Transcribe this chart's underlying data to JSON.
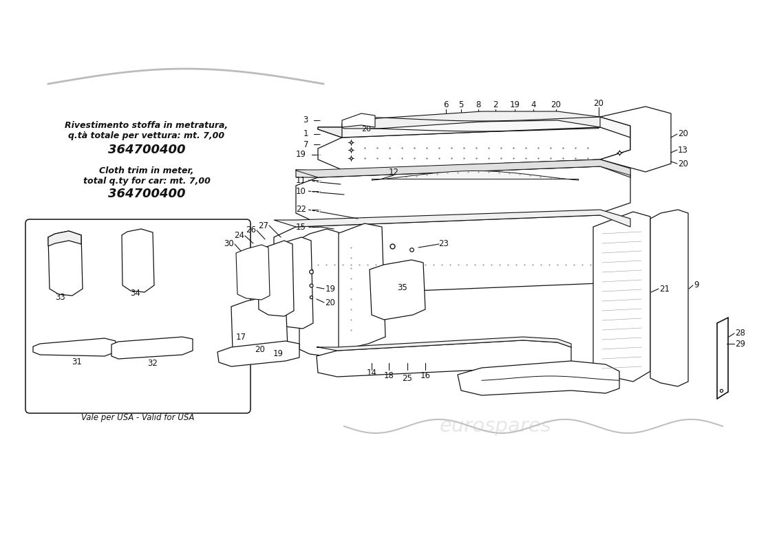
{
  "bg": "#ffffff",
  "lc": "#111111",
  "wm_color": "#cccccc",
  "title_it_1": "Rivestimento stoffa in metratura,",
  "title_it_2": "q.tà totale per vettura: mt. 7,00",
  "title_it_code": "364700400",
  "title_en_1": "Cloth trim in meter,",
  "title_en_2": "total q.ty for car: mt. 7,00",
  "title_en_code": "364700400",
  "usa_note": "Vale per USA - Valid for USA"
}
